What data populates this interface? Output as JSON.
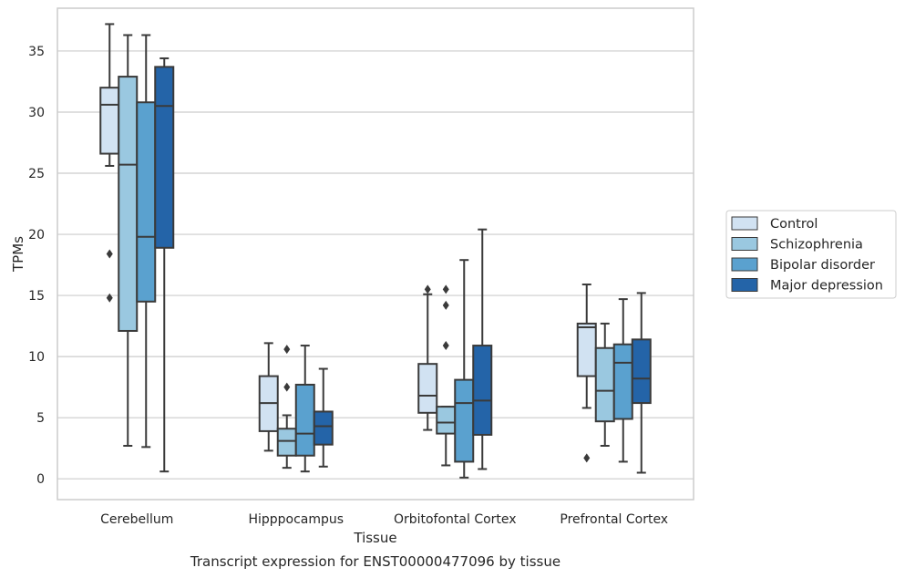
{
  "chart_data": {
    "type": "box",
    "title": "Transcript expression for ENST00000477096 by tissue",
    "xlabel": "Tissue",
    "ylabel": "TPMs",
    "ylim": [
      -1.7,
      38.5
    ],
    "yticks": [
      0,
      5,
      10,
      15,
      20,
      25,
      30,
      35
    ],
    "grid": true,
    "legend_position": "right",
    "categories": [
      "Cerebellum",
      "Hipppocampus",
      "Orbitofontal Cortex",
      "Prefrontal Cortex"
    ],
    "series": [
      {
        "name": "Control",
        "color": "#d1e2f2",
        "boxes": [
          {
            "whisker_low": 25.6,
            "q1": 26.6,
            "median": 30.6,
            "q3": 32.0,
            "whisker_high": 37.2,
            "outliers": [
              18.4,
              14.8
            ]
          },
          {
            "whisker_low": 2.3,
            "q1": 3.9,
            "median": 6.2,
            "q3": 8.4,
            "whisker_high": 11.1,
            "outliers": []
          },
          {
            "whisker_low": 4.0,
            "q1": 5.4,
            "median": 6.8,
            "q3": 9.4,
            "whisker_high": 15.1,
            "outliers": [
              15.5
            ]
          },
          {
            "whisker_low": 5.8,
            "q1": 8.4,
            "median": 12.4,
            "q3": 12.7,
            "whisker_high": 15.9,
            "outliers": [
              1.7
            ]
          }
        ]
      },
      {
        "name": "Schizophrenia",
        "color": "#9ac8e0",
        "boxes": [
          {
            "whisker_low": 2.7,
            "q1": 12.1,
            "median": 25.7,
            "q3": 32.9,
            "whisker_high": 36.3,
            "outliers": []
          },
          {
            "whisker_low": 0.9,
            "q1": 1.9,
            "median": 3.1,
            "q3": 4.1,
            "whisker_high": 5.2,
            "outliers": [
              10.6,
              7.5
            ]
          },
          {
            "whisker_low": 1.1,
            "q1": 3.7,
            "median": 4.6,
            "q3": 5.9,
            "whisker_high": 5.9,
            "outliers": [
              15.5,
              14.2,
              10.9
            ]
          },
          {
            "whisker_low": 2.7,
            "q1": 4.7,
            "median": 7.2,
            "q3": 10.7,
            "whisker_high": 12.7,
            "outliers": []
          }
        ]
      },
      {
        "name": "Bipolar disorder",
        "color": "#5aa1cf",
        "boxes": [
          {
            "whisker_low": 2.6,
            "q1": 14.5,
            "median": 19.8,
            "q3": 30.8,
            "whisker_high": 36.3,
            "outliers": []
          },
          {
            "whisker_low": 0.6,
            "q1": 1.9,
            "median": 3.7,
            "q3": 7.7,
            "whisker_high": 10.9,
            "outliers": []
          },
          {
            "whisker_low": 0.1,
            "q1": 1.4,
            "median": 6.2,
            "q3": 8.1,
            "whisker_high": 17.9,
            "outliers": []
          },
          {
            "whisker_low": 1.4,
            "q1": 4.9,
            "median": 9.5,
            "q3": 11.0,
            "whisker_high": 14.7,
            "outliers": []
          }
        ]
      },
      {
        "name": "Major depression",
        "color": "#2464a8",
        "boxes": [
          {
            "whisker_low": 0.6,
            "q1": 18.9,
            "median": 30.5,
            "q3": 33.7,
            "whisker_high": 34.4,
            "outliers": []
          },
          {
            "whisker_low": 1.0,
            "q1": 2.8,
            "median": 4.3,
            "q3": 5.5,
            "whisker_high": 9.0,
            "outliers": []
          },
          {
            "whisker_low": 0.8,
            "q1": 3.6,
            "median": 6.4,
            "q3": 10.9,
            "whisker_high": 20.4,
            "outliers": []
          },
          {
            "whisker_low": 0.5,
            "q1": 6.2,
            "median": 8.2,
            "q3": 11.4,
            "whisker_high": 15.2,
            "outliers": []
          }
        ]
      }
    ]
  }
}
